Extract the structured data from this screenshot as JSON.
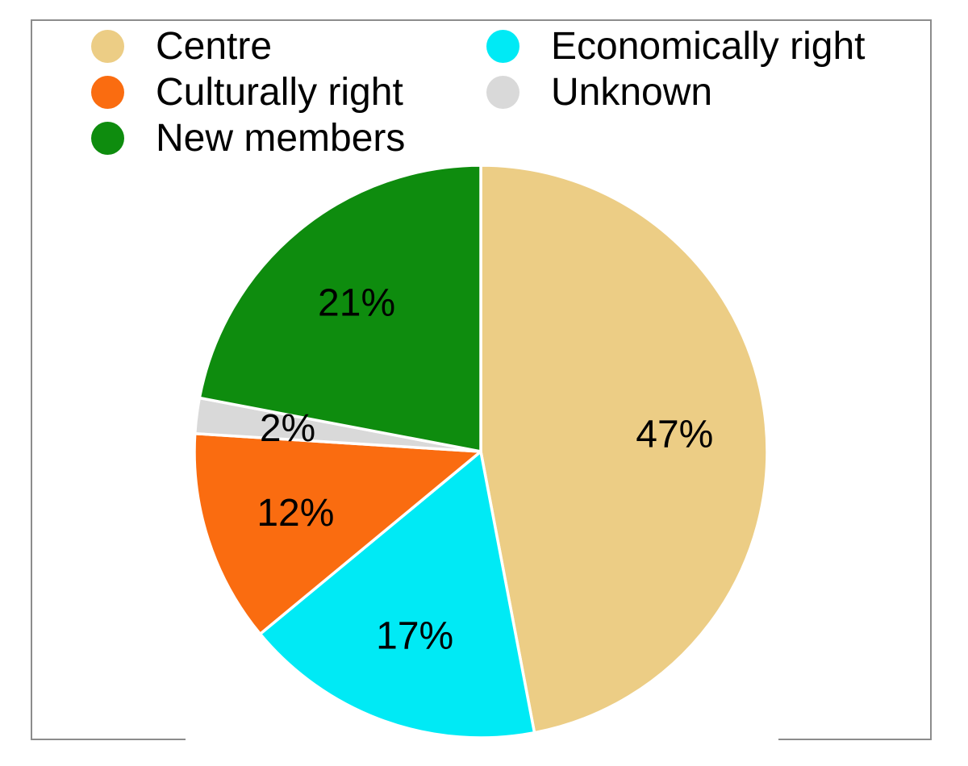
{
  "chart_data": {
    "type": "pie",
    "title": "",
    "slices": [
      {
        "label": "Centre",
        "value": 47,
        "display": "47%",
        "color": "#ECCD85"
      },
      {
        "label": "Economically right",
        "value": 17,
        "display": "17%",
        "color": "#00EAF5"
      },
      {
        "label": "Culturally right",
        "value": 12,
        "display": "12%",
        "color": "#FA6C10"
      },
      {
        "label": "Unknown",
        "value": 2,
        "display": "2%",
        "color": "#D9D9D9"
      },
      {
        "label": "New members",
        "value": 21,
        "display": "21%",
        "color": "#0E8C0E"
      }
    ],
    "start_angle_deg": 0,
    "direction": "clockwise",
    "separator_color": "#FFFFFF",
    "legend_position": "top-left",
    "legend_columns": 2,
    "legend_marker": "circle",
    "label_format": "percent",
    "label_radius_fraction": 0.68
  },
  "frame": {
    "border_color": "#8C8C8C"
  },
  "colors": {
    "background": "#FFFFFF",
    "label_text": "#000000"
  }
}
